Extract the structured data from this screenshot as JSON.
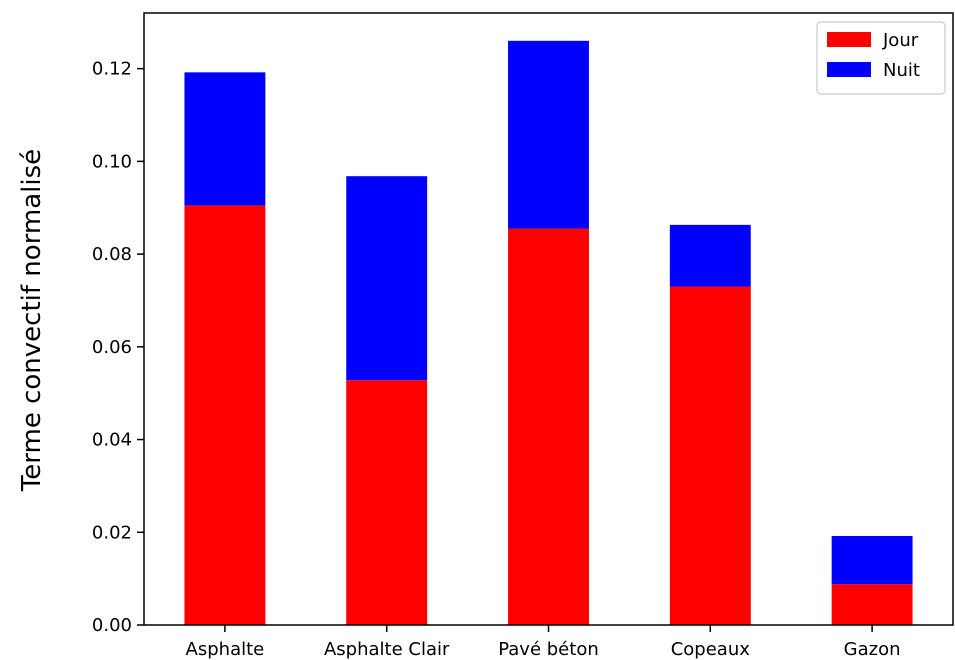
{
  "chart_data": {
    "type": "bar",
    "stacked": true,
    "categories": [
      "Asphalte",
      "Asphalte Clair",
      "Pavé béton",
      "Copeaux",
      "Gazon"
    ],
    "series": [
      {
        "name": "Jour",
        "color": "#ff0000",
        "values": [
          0.0905,
          0.0528,
          0.0855,
          0.073,
          0.0088
        ]
      },
      {
        "name": "Nuit",
        "color": "#0000ff",
        "values": [
          0.0287,
          0.044,
          0.0405,
          0.0133,
          0.0104
        ]
      }
    ],
    "ylabel": "Terme convectif normalisé",
    "xlabel": "",
    "ylim": [
      0,
      0.132
    ],
    "yticks": [
      "0.00",
      "0.02",
      "0.04",
      "0.06",
      "0.08",
      "0.10",
      "0.12"
    ],
    "grid": false,
    "legend_position": "top-right"
  }
}
